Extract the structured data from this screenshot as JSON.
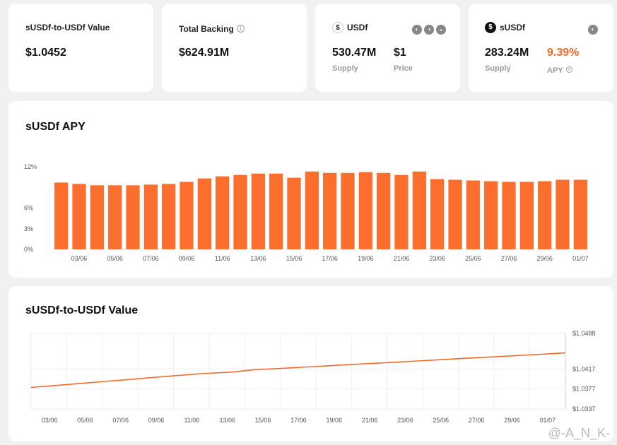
{
  "cards": {
    "ratio": {
      "label": "sUSDf-to-USDf Value",
      "value": "$1.0452"
    },
    "backing": {
      "label": "Total Backing",
      "value": "$624.91M"
    },
    "usdf": {
      "label": "USDf",
      "supply_value": "530.47M",
      "supply_label": "Supply",
      "price_value": "$1",
      "price_label": "Price"
    },
    "susdf": {
      "label": "sUSDf",
      "supply_value": "283.24M",
      "supply_label": "Supply",
      "apy_value": "9.39%",
      "apy_label": "APY"
    }
  },
  "apy_chart": {
    "title": "sUSDf APY",
    "chart_data": {
      "type": "bar",
      "title": "sUSDf APY",
      "ylim": [
        0,
        12
      ],
      "y_ticks": [
        "0%",
        "3%",
        "6%",
        "12%"
      ],
      "y_tick_values": [
        0,
        3,
        6,
        12
      ],
      "x_tick_labels": [
        "03/06",
        "05/06",
        "07/06",
        "09/06",
        "11/06",
        "13/06",
        "15/06",
        "17/06",
        "19/06",
        "21/06",
        "23/06",
        "25/06",
        "27/06",
        "29/06",
        "01/07"
      ],
      "values": [
        9.7,
        9.5,
        9.3,
        9.3,
        9.3,
        9.4,
        9.5,
        9.8,
        10.3,
        10.6,
        10.8,
        11.0,
        11.0,
        10.4,
        11.3,
        11.1,
        11.1,
        11.2,
        11.1,
        10.8,
        11.3,
        10.2,
        10.1,
        10.0,
        9.9,
        9.8,
        9.8,
        9.9,
        10.1,
        10.1
      ]
    },
    "bar_color": "#fb6e2d"
  },
  "value_chart": {
    "title": "sUSDf-to-USDf Value",
    "chart_data": {
      "type": "line",
      "title": "sUSDf-to-USDf Value",
      "ylim": [
        1.0337,
        1.0488
      ],
      "y_ticks": [
        "$1.0337",
        "$1.0377",
        "$1.0417",
        "$1.0488"
      ],
      "y_tick_values": [
        1.0337,
        1.0377,
        1.0417,
        1.0488
      ],
      "x_tick_labels": [
        "03/06",
        "05/06",
        "07/06",
        "09/06",
        "11/06",
        "13/06",
        "15/06",
        "17/06",
        "19/06",
        "21/06",
        "23/06",
        "25/06",
        "27/06",
        "29/06",
        "01/07"
      ],
      "values": [
        1.038,
        1.0383,
        1.0386,
        1.0389,
        1.0392,
        1.0395,
        1.0398,
        1.0401,
        1.0404,
        1.0407,
        1.0409,
        1.0411,
        1.0415,
        1.0417,
        1.0419,
        1.0421,
        1.0423,
        1.0425,
        1.0427,
        1.0429,
        1.0431,
        1.0433,
        1.0435,
        1.0437,
        1.0439,
        1.0441,
        1.0443,
        1.0445,
        1.0447,
        1.0449
      ]
    },
    "line_color": "#f26b2a"
  },
  "watermark": "@-A_N_K-",
  "colors": {
    "accent": "#fb6e2d",
    "apy": "#f26b2a",
    "card": "#ffffff",
    "background": "#f1f1f1"
  }
}
